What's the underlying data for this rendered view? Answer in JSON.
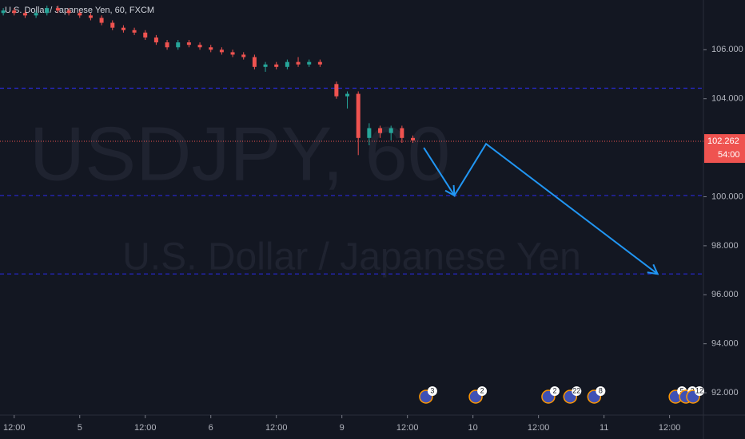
{
  "chart_data": {
    "type": "candlestick",
    "title": "U.S. Dollar / Japanese Yen, 60, FXCM",
    "watermark": "USDJPY, 60",
    "watermark_subtitle": "U.S. Dollar /  Japanese Yen",
    "xlim": [
      -14.6,
      114.2
    ],
    "ylim": [
      91.09,
      108.03
    ],
    "xticks": [
      {
        "value": -12,
        "label": "12:00"
      },
      {
        "value": 0,
        "label": "5"
      },
      {
        "value": 12,
        "label": "12:00"
      },
      {
        "value": 24,
        "label": "6"
      },
      {
        "value": 36,
        "label": "12:00"
      },
      {
        "value": 48,
        "label": "9"
      },
      {
        "value": 60,
        "label": "12:00"
      },
      {
        "value": 72,
        "label": "10"
      },
      {
        "value": 84,
        "label": "12:00"
      },
      {
        "value": 96,
        "label": "11"
      },
      {
        "value": 108,
        "label": "12:00"
      }
    ],
    "yticks": [
      {
        "value": 92,
        "label": "92.000"
      },
      {
        "value": 94,
        "label": "94.000"
      },
      {
        "value": 96,
        "label": "96.000"
      },
      {
        "value": 98,
        "label": "98.000"
      },
      {
        "value": 100,
        "label": "100.000"
      },
      {
        "value": 104,
        "label": "104.000"
      },
      {
        "value": 106,
        "label": "106.000"
      }
    ],
    "up_color": "#26a69a",
    "down_color": "#ef5350",
    "x": [
      -14,
      -12,
      -10,
      -8,
      -6,
      -4,
      -2,
      0,
      2,
      4,
      6,
      8,
      10,
      12,
      14,
      16,
      18,
      20,
      22,
      24,
      26,
      28,
      30,
      32,
      34,
      36,
      38,
      40,
      42,
      44,
      47,
      49,
      51,
      53,
      55,
      57,
      59,
      61
    ],
    "open": [
      107.5,
      107.6,
      107.5,
      107.4,
      107.5,
      107.7,
      107.6,
      107.5,
      107.4,
      107.3,
      107.1,
      106.9,
      106.8,
      106.7,
      106.5,
      106.3,
      106.1,
      106.3,
      106.2,
      106.1,
      106.0,
      105.9,
      105.8,
      105.7,
      105.3,
      105.4,
      105.3,
      105.5,
      105.4,
      105.5,
      104.6,
      104.1,
      104.2,
      102.4,
      102.8,
      102.6,
      102.8,
      102.4
    ],
    "high": [
      107.7,
      107.7,
      107.6,
      107.6,
      107.8,
      107.8,
      107.7,
      107.6,
      107.5,
      107.4,
      107.2,
      107.0,
      106.9,
      106.8,
      106.6,
      106.4,
      106.4,
      106.4,
      106.3,
      106.2,
      106.1,
      106.0,
      105.9,
      105.8,
      105.5,
      105.5,
      105.6,
      105.7,
      105.6,
      105.6,
      104.7,
      104.3,
      104.3,
      103.0,
      102.9,
      102.9,
      102.9,
      102.5
    ],
    "low": [
      107.4,
      107.4,
      107.3,
      107.3,
      107.4,
      107.5,
      107.4,
      107.3,
      107.2,
      107.0,
      106.8,
      106.7,
      106.6,
      106.4,
      106.2,
      106.0,
      106.0,
      106.1,
      106.0,
      105.9,
      105.8,
      105.7,
      105.6,
      105.2,
      105.1,
      105.2,
      105.2,
      105.3,
      105.3,
      105.3,
      104.0,
      103.6,
      101.7,
      102.1,
      102.4,
      102.3,
      102.2,
      102.2
    ],
    "close": [
      107.6,
      107.5,
      107.4,
      107.5,
      107.7,
      107.6,
      107.5,
      107.4,
      107.3,
      107.1,
      106.9,
      106.8,
      106.7,
      106.5,
      106.3,
      106.1,
      106.3,
      106.2,
      106.1,
      106.0,
      105.9,
      105.8,
      105.7,
      105.3,
      105.4,
      105.3,
      105.5,
      105.4,
      105.5,
      105.4,
      104.1,
      104.2,
      102.4,
      102.8,
      102.6,
      102.8,
      102.4,
      102.3
    ],
    "last_price": 102.262,
    "countdown": "54:00",
    "last_color": "#ef5350",
    "levels": [
      104.43,
      100.05,
      96.85
    ],
    "level_color": "#2929d6",
    "drawing": {
      "color": "#2196f3",
      "x": [
        63.0,
        68.6,
        74.4,
        105.8
      ],
      "y": [
        102.0,
        100.05,
        102.16,
        96.85
      ]
    },
    "events": {
      "x": [
        63.4,
        72.5,
        85.8,
        89.8,
        94.2,
        109.1,
        111.0,
        112.3
      ],
      "labels": [
        "3",
        "2",
        "2",
        "22",
        "8",
        "5",
        "3",
        "12"
      ]
    }
  }
}
